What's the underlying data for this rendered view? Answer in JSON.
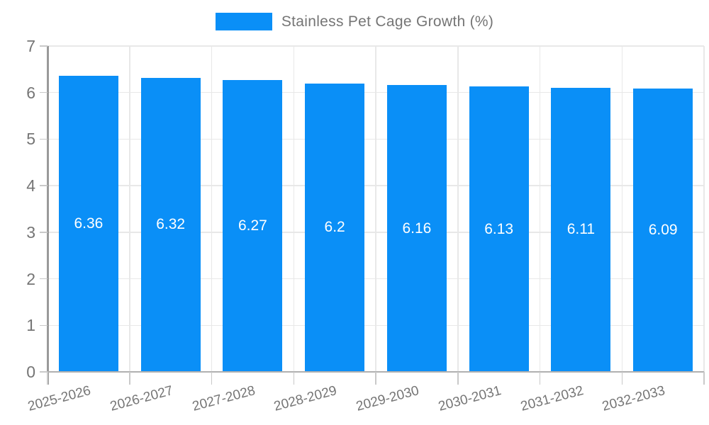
{
  "legend": {
    "label": "Stainless Pet Cage Growth (%)"
  },
  "colors": {
    "bar": "#0a8ff7",
    "axis_text": "#757575",
    "gridline": "#e8e8e8",
    "axis_line": "#9a9a9a",
    "bar_value_text": "#ffffff"
  },
  "chart_data": {
    "type": "bar",
    "title": "",
    "categories": [
      "2025-2026",
      "2026-2027",
      "2027-2028",
      "2028-2029",
      "2029-2030",
      "2030-2031",
      "2031-2032",
      "2032-2033"
    ],
    "series": [
      {
        "name": "Stainless Pet Cage Growth (%)",
        "values": [
          6.36,
          6.32,
          6.27,
          6.2,
          6.16,
          6.13,
          6.11,
          6.09
        ]
      }
    ],
    "value_labels": [
      "6.36",
      "6.32",
      "6.27",
      "6.2",
      "6.16",
      "6.13",
      "6.11",
      "6.09"
    ],
    "xlabel": "",
    "ylabel": "",
    "ylim": [
      0,
      7
    ],
    "ytick_labels": [
      "0",
      "1",
      "2",
      "3",
      "4",
      "5",
      "6",
      "7"
    ],
    "grid": true,
    "legend_position": "top",
    "bar_color": "#0a8ff7"
  }
}
